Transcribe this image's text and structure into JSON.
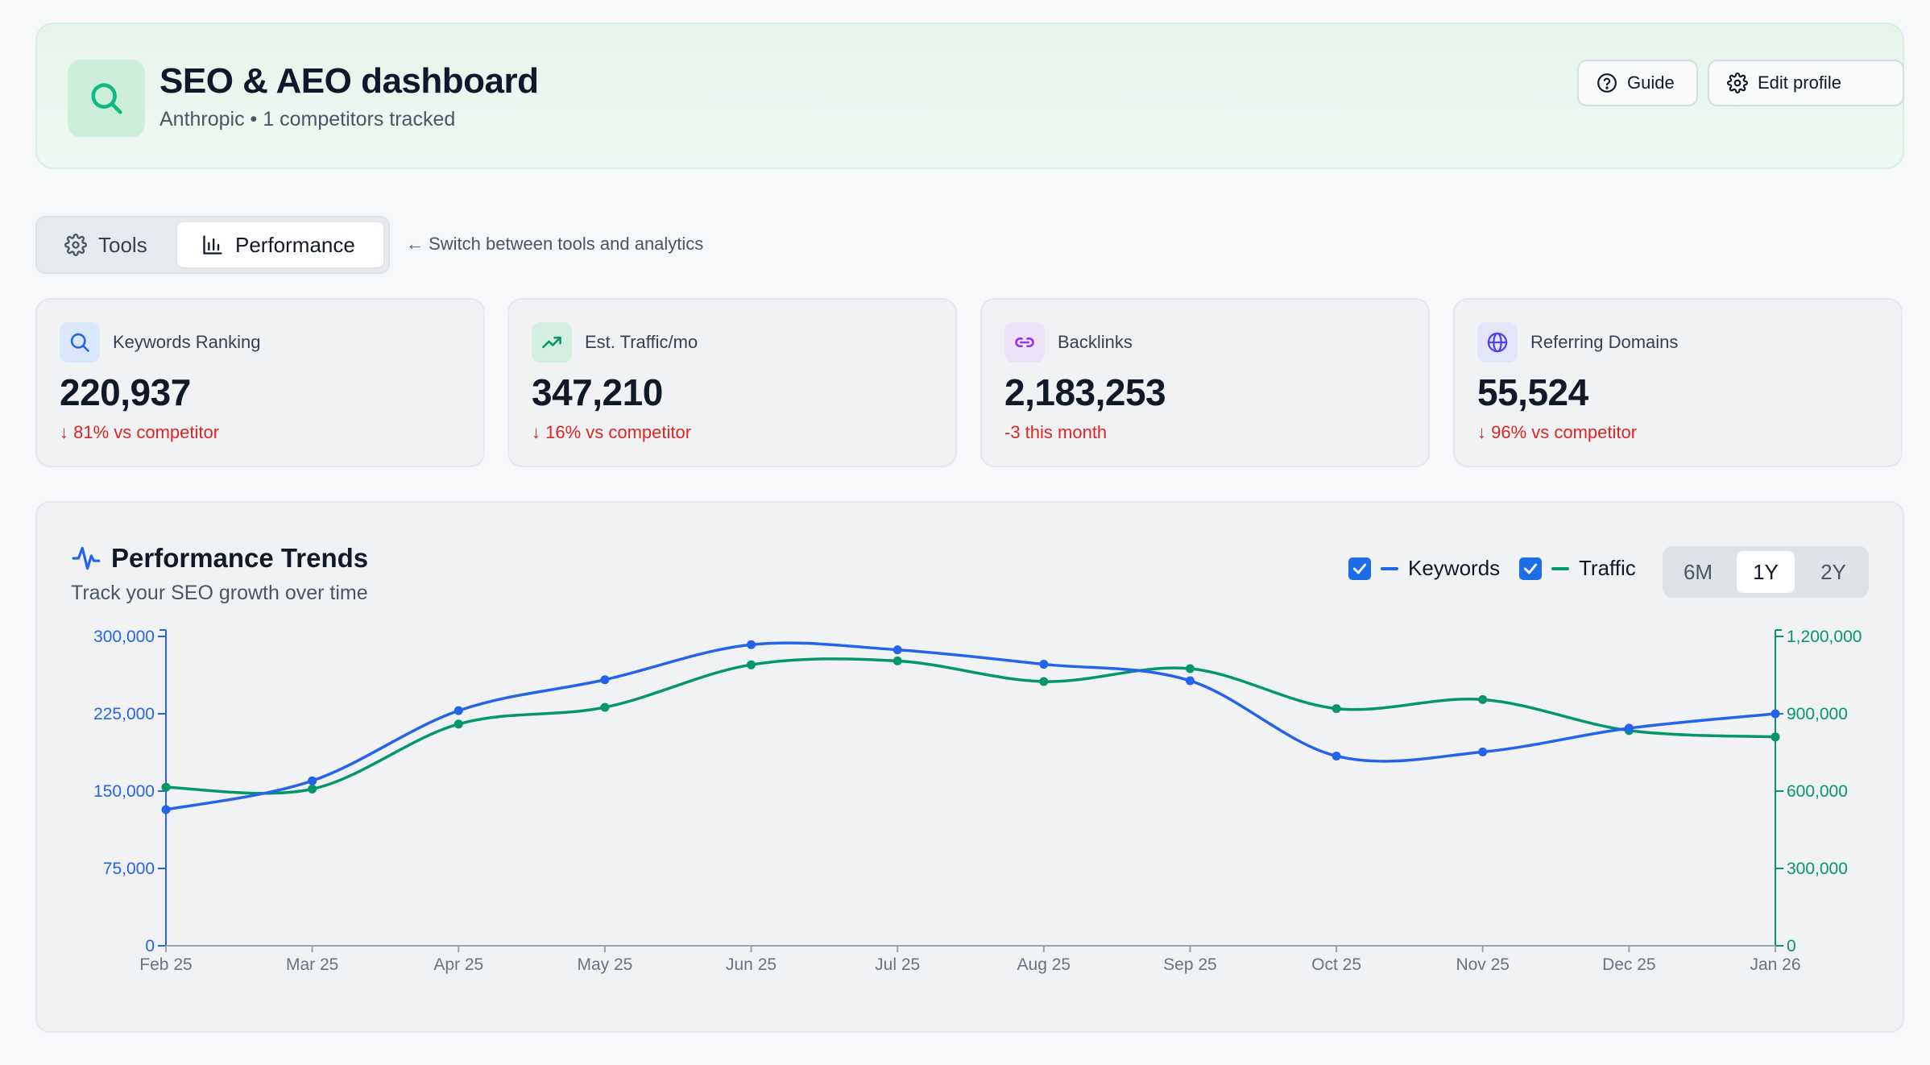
{
  "header": {
    "title": "SEO & AEO dashboard",
    "subtitle": "Anthropic • 1 competitors tracked",
    "guide_label": "Guide",
    "edit_profile_label": "Edit profile",
    "accent": "#10b981"
  },
  "tabs": {
    "tools_label": "Tools",
    "performance_label": "Performance",
    "active": "Performance",
    "hint": "← Switch between tools and analytics"
  },
  "stats": [
    {
      "label": "Keywords Ranking",
      "value": "220,937",
      "delta": "↓ 81% vs competitor",
      "icon": "search-icon",
      "icon_bg": "#dbe7fb",
      "icon_color": "#2563eb"
    },
    {
      "label": "Est. Traffic/mo",
      "value": "347,210",
      "delta": "↓ 16% vs competitor",
      "icon": "trending-up-icon",
      "icon_bg": "#d3efe2",
      "icon_color": "#059669"
    },
    {
      "label": "Backlinks",
      "value": "2,183,253",
      "delta": "-3 this month",
      "icon": "link-icon",
      "icon_bg": "#ece3f8",
      "icon_color": "#9333ea"
    },
    {
      "label": "Referring Domains",
      "value": "55,524",
      "delta": "↓ 96% vs competitor",
      "icon": "globe-icon",
      "icon_bg": "#e3e6f8",
      "icon_color": "#4f46e5"
    }
  ],
  "trends": {
    "title": "Performance Trends",
    "subtitle": "Track your SEO growth over time",
    "legend_keywords": "Keywords",
    "legend_traffic": "Traffic",
    "keywords_checked": true,
    "traffic_checked": true,
    "ranges": [
      "6M",
      "1Y",
      "2Y"
    ],
    "active_range": "1Y"
  },
  "chart_data": {
    "type": "line",
    "categories": [
      "Feb 25",
      "Mar 25",
      "Apr 25",
      "May 25",
      "Jun 25",
      "Jul 25",
      "Aug 25",
      "Sep 25",
      "Oct 25",
      "Nov 25",
      "Dec 25",
      "Jan 26"
    ],
    "series": [
      {
        "name": "Keywords",
        "axis": "left",
        "color": "#2563eb",
        "values": [
          132000,
          160000,
          228000,
          258000,
          292000,
          287000,
          273000,
          257000,
          184000,
          188000,
          211000,
          225000
        ]
      },
      {
        "name": "Traffic",
        "axis": "right",
        "color": "#059669",
        "values": [
          615000,
          608000,
          860000,
          925000,
          1090000,
          1105000,
          1025000,
          1075000,
          920000,
          955000,
          835000,
          810000
        ]
      }
    ],
    "ylim_left": [
      0,
      300000
    ],
    "yticks_left": [
      "0",
      "75,000",
      "150,000",
      "225,000",
      "300,000"
    ],
    "ylim_right": [
      0,
      1200000
    ],
    "yticks_right": [
      "0",
      "300,000",
      "600,000",
      "900,000",
      "1,200,000"
    ],
    "grid": false,
    "legend": "top-right"
  }
}
